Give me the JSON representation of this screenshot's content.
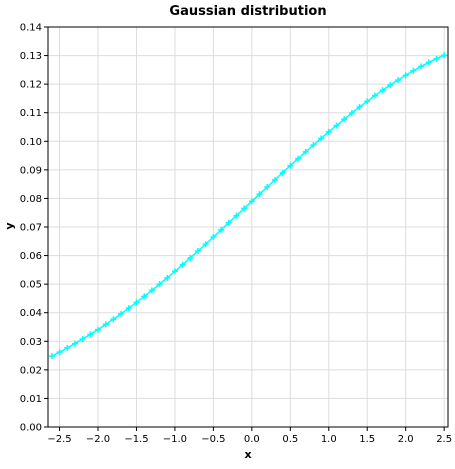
{
  "chart_data": {
    "type": "line",
    "title": "Gaussian distribution",
    "xlabel": "x",
    "ylabel": "y",
    "xlim": [
      -2.65,
      2.55
    ],
    "ylim": [
      0,
      0.14
    ],
    "grid": true,
    "x_ticks": [
      "−2.5",
      "−2.0",
      "−1.5",
      "−1.0",
      "−0.5",
      "0.0",
      "0.5",
      "1.0",
      "1.5",
      "2.0",
      "2.5"
    ],
    "x_tick_values": [
      -2.5,
      -2.0,
      -1.5,
      -1.0,
      -0.5,
      0.0,
      0.5,
      1.0,
      1.5,
      2.0,
      2.5
    ],
    "y_ticks": [
      "0.00",
      "0.01",
      "0.02",
      "0.03",
      "0.04",
      "0.05",
      "0.06",
      "0.07",
      "0.08",
      "0.09",
      "0.10",
      "0.11",
      "0.12",
      "0.13",
      "0.14"
    ],
    "y_tick_values": [
      0.0,
      0.01,
      0.02,
      0.03,
      0.04,
      0.05,
      0.06,
      0.07,
      0.08,
      0.09,
      0.1,
      0.11,
      0.12,
      0.13,
      0.14
    ],
    "series": [
      {
        "color": "#00ffff",
        "marker": "plus",
        "x": [
          -2.6,
          -2.5,
          -2.4,
          -2.3,
          -2.2,
          -2.1,
          -2.0,
          -1.9,
          -1.8,
          -1.7,
          -1.6,
          -1.5,
          -1.4,
          -1.3,
          -1.2,
          -1.1,
          -1.0,
          -0.9,
          -0.8,
          -0.7,
          -0.6,
          -0.5,
          -0.4,
          -0.3,
          -0.2,
          -0.1,
          0.0,
          0.1,
          0.2,
          0.3,
          0.4,
          0.5,
          0.6,
          0.7,
          0.8,
          0.9,
          1.0,
          1.1,
          1.2,
          1.3,
          1.4,
          1.5,
          1.6,
          1.7,
          1.8,
          1.9,
          2.0,
          2.1,
          2.2,
          2.3,
          2.4,
          2.5
        ],
        "y": [
          0.0248,
          0.0262,
          0.0277,
          0.0292,
          0.0308,
          0.0324,
          0.0341,
          0.0359,
          0.0377,
          0.0396,
          0.0416,
          0.0436,
          0.0457,
          0.0478,
          0.05,
          0.0522,
          0.0545,
          0.0568,
          0.0592,
          0.0616,
          0.064,
          0.0665,
          0.069,
          0.0715,
          0.074,
          0.0765,
          0.079,
          0.0815,
          0.084,
          0.0865,
          0.089,
          0.0915,
          0.0939,
          0.0963,
          0.0987,
          0.101,
          0.1033,
          0.1055,
          0.1077,
          0.1099,
          0.112,
          0.114,
          0.116,
          0.1179,
          0.1197,
          0.1214,
          0.1231,
          0.1247,
          0.1262,
          0.1276,
          0.1289,
          0.1301
        ]
      }
    ]
  }
}
